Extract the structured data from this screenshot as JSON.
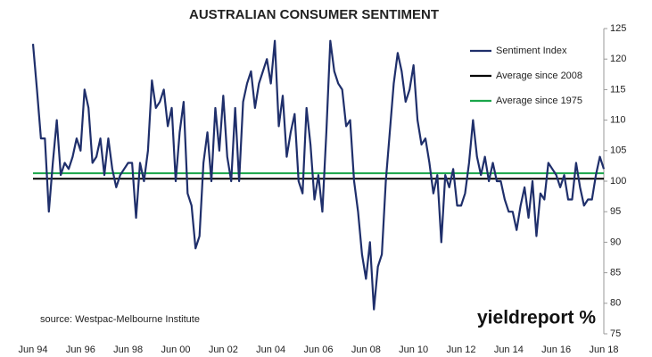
{
  "chart_data": {
    "type": "line",
    "title": "AUSTRALIAN CONSUMER SENTIMENT",
    "source": "source: Westpac-Melbourne Institute",
    "brand": "yieldreport %",
    "categories": [
      "Jun 94",
      null,
      null,
      null,
      null,
      null,
      null,
      null,
      null,
      null,
      null,
      null,
      "Jun 96",
      null,
      null,
      null,
      null,
      null,
      null,
      null,
      null,
      null,
      null,
      null,
      "Jun 98",
      null,
      null,
      null,
      null,
      null,
      null,
      null,
      null,
      null,
      null,
      null,
      "Jun 00",
      null,
      null,
      null,
      null,
      null,
      null,
      null,
      null,
      null,
      null,
      null,
      "Jun 02",
      null,
      null,
      null,
      null,
      null,
      null,
      null,
      null,
      null,
      null,
      null,
      "Jun 04",
      null,
      null,
      null,
      null,
      null,
      null,
      null,
      null,
      null,
      null,
      null,
      "Jun 06",
      null,
      null,
      null,
      null,
      null,
      null,
      null,
      null,
      null,
      null,
      null,
      "Jun 08",
      null,
      null,
      null,
      null,
      null,
      null,
      null,
      null,
      null,
      null,
      null,
      "Jun 10",
      null,
      null,
      null,
      null,
      null,
      null,
      null,
      null,
      null,
      null,
      null,
      "Jun 12",
      null,
      null,
      null,
      null,
      null,
      null,
      null,
      null,
      null,
      null,
      null,
      "Jun 14",
      null,
      null,
      null,
      null,
      null,
      null,
      null,
      null,
      null,
      null,
      null,
      "Jun 16",
      null,
      null,
      null,
      null,
      null,
      null,
      null,
      null,
      null,
      null,
      null,
      "Jun 18"
    ],
    "series": [
      {
        "name": "Sentiment Index",
        "color": "#1f2f6b",
        "values": [
          122.5,
          115,
          107,
          107,
          95,
          103,
          110,
          101,
          103,
          102,
          104,
          107,
          105,
          115,
          112,
          103,
          104,
          107,
          101,
          107,
          102,
          99,
          101,
          102,
          103,
          103,
          94,
          103,
          100,
          105,
          116.5,
          112,
          113,
          115,
          109,
          112,
          100,
          108,
          113,
          98,
          96,
          89,
          91,
          103,
          108,
          100,
          112,
          105,
          114,
          104,
          100,
          112,
          100,
          113,
          116,
          118,
          112,
          116,
          118,
          120,
          116,
          123,
          109,
          114,
          104,
          108,
          111,
          100,
          98,
          112,
          106,
          97,
          101,
          95,
          108,
          123,
          118,
          116,
          115,
          109,
          110,
          100,
          95,
          88,
          84,
          90,
          79,
          86,
          88,
          100,
          108,
          116,
          121,
          118,
          113,
          115,
          119,
          110,
          106,
          107,
          103,
          98,
          101,
          90,
          101,
          99,
          102,
          96,
          96,
          98,
          103,
          110,
          104,
          101,
          104,
          100,
          103,
          100,
          100,
          97,
          95,
          95,
          92,
          96,
          99,
          94,
          100,
          91,
          98,
          97,
          103,
          102,
          101,
          99,
          101,
          97,
          97,
          103,
          99,
          96,
          97,
          97,
          101,
          104,
          102
        ]
      }
    ],
    "reference_lines": [
      {
        "name": "Average since 2008",
        "color": "#000000",
        "value": 100.4
      },
      {
        "name": "Average since 1975",
        "color": "#1aa64a",
        "value": 101.3
      }
    ],
    "ylim": [
      75,
      125
    ],
    "yticks": [
      75,
      80,
      85,
      90,
      95,
      100,
      105,
      110,
      115,
      120,
      125
    ],
    "grid": false
  }
}
